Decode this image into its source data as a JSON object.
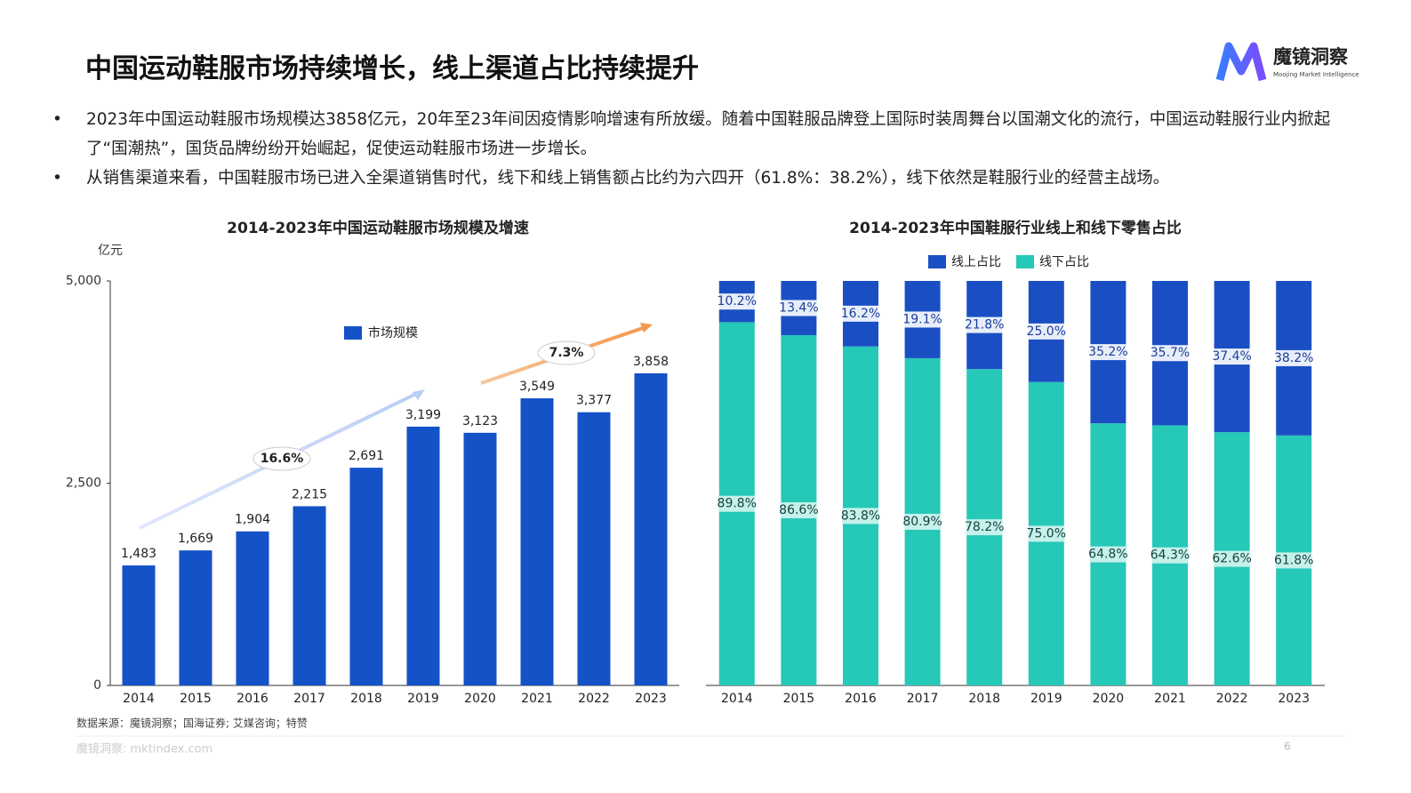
{
  "header": {
    "title": "中国运动鞋服市场持续增长，线上渠道占比持续提升",
    "logo": "魔镜洞察",
    "logo_subtitle": "Moojing Market Intelligence"
  },
  "bullets": [
    "2023年中国运动鞋服市场规模达3858亿元，20年至23年间因疫情影响增速有所放缓。随着中国鞋服品牌登上国际时装周舞台以国潮文化的流行，中国运动鞋服行业内掀起了“国潮热”，国货品牌纷纷开始崛起，促使运动鞋服市场进一步增长。",
    "从销售渠道来看，中国鞋服市场已进入全渠道销售时代，线下和线上销售额占比约为六四开（61.8%：38.2%），线下依然是鞋服行业的经营主战场。"
  ],
  "chart_data": [
    {
      "type": "bar",
      "title": "2014-2023年中国运动鞋服市场规模及增速",
      "y_label": "亿元",
      "categories": [
        "2014",
        "2015",
        "2016",
        "2017",
        "2018",
        "2019",
        "2020",
        "2021",
        "2022",
        "2023"
      ],
      "series": [
        {
          "name": "市场规模",
          "color": "#1452c8",
          "values": [
            1483,
            1669,
            1904,
            2215,
            2691,
            3199,
            3123,
            3549,
            3377,
            3858
          ],
          "value_labels": [
            "1,483",
            "1,669",
            "1,904",
            "2,215",
            "2,691",
            "3,199",
            "3,123",
            "3,549",
            "3,377",
            "3,858"
          ]
        }
      ],
      "ylim": [
        0,
        5000
      ],
      "yticks": [
        0,
        {
          "value": 2500,
          "label": "2,500"
        },
        {
          "value": 5000,
          "label": "5,000"
        }
      ],
      "annotations": [
        "16.6%",
        "7.3%"
      ],
      "legend": "upper center",
      "grid": false
    },
    {
      "type": "stacked_bar",
      "title": "2014-2023年中国鞋服行业线上和线下零售占比",
      "categories": [
        "2014",
        "2015",
        "2016",
        "2017",
        "2018",
        "2019",
        "2020",
        "2021",
        "2022",
        "2023"
      ],
      "series": [
        {
          "name": "线上占比",
          "color": "#1a4fc4",
          "values": [
            10.2,
            13.4,
            16.2,
            19.1,
            21.8,
            25.0,
            35.2,
            35.7,
            37.4,
            38.2
          ],
          "value_labels": [
            "10.2%",
            "13.4%",
            "16.2%",
            "19.1%",
            "21.8%",
            "25.0%",
            "35.2%",
            "35.7%",
            "37.4%",
            "38.2%"
          ]
        },
        {
          "name": "线下占比",
          "color": "#26c8b8",
          "values": [
            89.8,
            86.6,
            83.8,
            80.9,
            78.2,
            75.0,
            64.8,
            64.3,
            62.6,
            61.8
          ],
          "value_labels": [
            "89.8%",
            "86.6%",
            "83.8%",
            "80.9%",
            "78.2%",
            "75.0%",
            "64.8%",
            "64.3%",
            "62.6%",
            "61.8%"
          ]
        }
      ],
      "ylim": [
        0,
        100
      ],
      "legend": "top",
      "grid": false
    }
  ],
  "source": "数据来源：魔镜洞察；国海证券; 艾媒咨询；特赞",
  "footer": "魔镜洞察: mktindex.com",
  "page_number": "6"
}
